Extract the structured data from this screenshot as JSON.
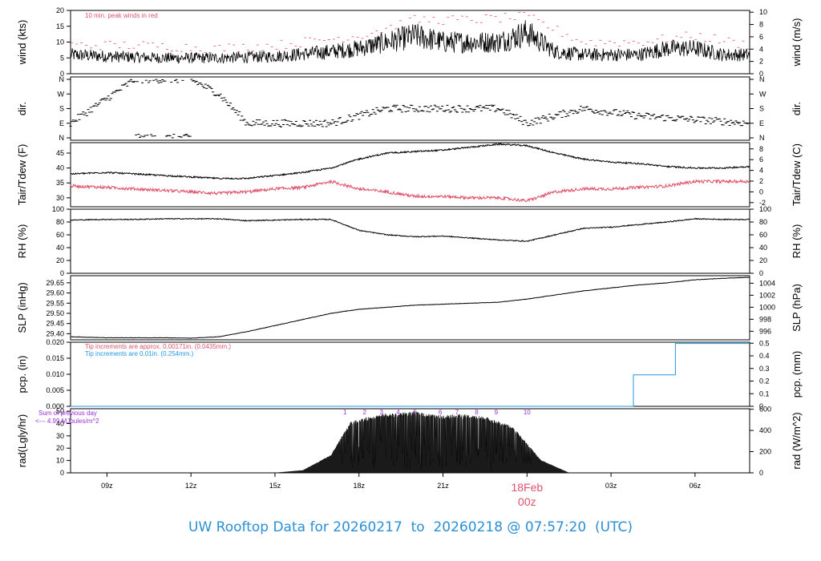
{
  "footer": {
    "prefix": "UW Rooftop Data for",
    "start": "20260217",
    "to": "to",
    "end": "20260218",
    "at": "@",
    "time": "07:57:20",
    "tz": "(UTC)"
  },
  "colors": {
    "black": "#000000",
    "red": "#df536b",
    "blue": "#2297e6",
    "purple": "#9b30d9",
    "footer": "#2b8fd6"
  },
  "time_axis": {
    "range_hours": [
      7.7,
      31.95
    ],
    "ticks": [
      {
        "h": 9,
        "label": "09z"
      },
      {
        "h": 12,
        "label": "12z"
      },
      {
        "h": 15,
        "label": "15z"
      },
      {
        "h": 18,
        "label": "18z"
      },
      {
        "h": 21,
        "label": "21z"
      },
      {
        "h": 24,
        "label": "18Feb"
      },
      {
        "h": 27,
        "label": "03z"
      },
      {
        "h": 30,
        "label": "06z"
      }
    ],
    "day_marker": {
      "date": "18Feb",
      "hour": "00z"
    }
  },
  "panels": {
    "wind": {
      "ylabel_left": "wind (kts)",
      "ylabel_right": "wind (m/s)",
      "left_ticks": [
        0,
        5,
        10,
        15,
        20
      ],
      "right_ticks": [
        0,
        2,
        4,
        6,
        8,
        10
      ],
      "ylim": [
        0,
        20
      ],
      "note": "10 min. peak winds in red"
    },
    "dir": {
      "ylabel_left": "dir.",
      "ylabel_right": "dir.",
      "ticks": [
        "N",
        "E",
        "S",
        "W",
        "N"
      ]
    },
    "temp": {
      "ylabel_left": "Tair/Tdew (F)",
      "ylabel_right": "Tair/Tdew (C)",
      "left_ticks": [
        30,
        35,
        40,
        45
      ],
      "right_ticks": [
        -2,
        0,
        2,
        4,
        6,
        8
      ],
      "ylim": [
        27,
        48.5
      ]
    },
    "rh": {
      "ylabel_left": "RH (%)",
      "ylabel_right": "RH (%)",
      "ticks": [
        0,
        20,
        40,
        60,
        80,
        100
      ],
      "ylim": [
        0,
        100
      ]
    },
    "slp": {
      "ylabel_left": "SLP (inHg)",
      "ylabel_right": "SLP (hPa)",
      "left_ticks": [
        "29.40",
        "29.45",
        "29.50",
        "29.55",
        "29.60",
        "29.65"
      ],
      "right_ticks": [
        996,
        998,
        1000,
        1002,
        1004
      ],
      "ylim": [
        29.37,
        29.685
      ]
    },
    "pcp": {
      "ylabel_left": "pcp. (in)",
      "ylabel_right": "pcp. (mm)",
      "left_ticks": [
        "0.000",
        "0.005",
        "0.010",
        "0.015",
        "0.020"
      ],
      "right_ticks": [
        0,
        0.1,
        0.2,
        0.3,
        0.4,
        0.5
      ],
      "ylim": [
        0,
        0.02
      ],
      "note_red": "Tip increments are approx. 0.00171in. (0.0435mm.)",
      "note_blue": "Tip increments are 0.01in. (0.254mm.)"
    },
    "rad": {
      "ylabel_left": "rad(Lgly/hr)",
      "ylabel_right": "rad (W/m^2)",
      "left_ticks": [
        0,
        10,
        20,
        30,
        40,
        50
      ],
      "right_ticks": [
        0,
        200,
        400,
        600
      ],
      "ylim": [
        0,
        52
      ],
      "note_line1": "Sum of previous day",
      "note_line2": "<--- 4.99 MJoules/m^2",
      "hour_marks": [
        "1",
        "2",
        "3",
        "4",
        "5",
        "6",
        "7",
        "8",
        "9",
        "10"
      ]
    }
  },
  "chart_data": {
    "type": "line",
    "title": "UW Rooftop Data for 20260217 to 20260218 @ 07:57:20 (UTC)",
    "x_unit": "hour (UTC) starting 2026-02-17 00z",
    "wind_kts": {
      "x": [
        7.7,
        9,
        11,
        13,
        15,
        17,
        18,
        19,
        20,
        21,
        22,
        23,
        24,
        25,
        26,
        27,
        28,
        29,
        30,
        31,
        31.95
      ],
      "y": [
        6,
        5.5,
        5,
        5,
        5.5,
        7,
        8,
        10,
        12,
        10,
        10,
        10,
        13,
        7,
        6,
        6,
        6,
        8,
        8,
        6,
        6
      ]
    },
    "peak_wind_kts": {
      "x": [
        7.7,
        10,
        13,
        15,
        18,
        20,
        22,
        24,
        26,
        28,
        30,
        31.95
      ],
      "y": [
        9,
        9,
        8,
        9,
        12,
        17,
        17,
        18,
        10,
        10,
        12,
        9
      ]
    },
    "direction": {
      "points": [
        [
          7.7,
          "E"
        ],
        [
          10,
          "N"
        ],
        [
          12,
          "N"
        ],
        [
          13,
          "W"
        ],
        [
          14,
          "E"
        ],
        [
          17,
          "E"
        ],
        [
          19,
          "S"
        ],
        [
          21,
          "S"
        ],
        [
          23,
          "S"
        ],
        [
          24,
          "E"
        ],
        [
          26,
          "S"
        ],
        [
          28,
          "SE"
        ],
        [
          31.95,
          "E"
        ]
      ]
    },
    "air_temp_f": {
      "x": [
        7.7,
        9,
        10,
        11,
        12,
        13,
        14,
        15,
        16,
        17,
        18,
        19,
        20,
        21,
        22,
        23,
        24,
        25,
        26,
        27,
        28,
        29,
        30,
        31,
        31.95
      ],
      "y": [
        38,
        38.5,
        38,
        37.5,
        37,
        36.5,
        36.5,
        37.5,
        38.5,
        40,
        43,
        45,
        45.5,
        46,
        47,
        48,
        47.5,
        45,
        43,
        42,
        41.5,
        40.5,
        40,
        40,
        40.5
      ]
    },
    "dewpoint_f": {
      "x": [
        7.7,
        9,
        10,
        11,
        12,
        13,
        14,
        15,
        16,
        17,
        18,
        19,
        20,
        21,
        22,
        23,
        24,
        25,
        26,
        27,
        28,
        29,
        30,
        31,
        31.95
      ],
      "y": [
        34,
        33.5,
        33,
        32.5,
        32,
        31.5,
        32,
        33,
        33.5,
        35.5,
        33,
        32,
        30.5,
        30.5,
        30,
        30,
        29,
        32,
        33,
        33,
        33.5,
        34,
        35.5,
        35.5,
        35.5
      ]
    },
    "rh_pct": {
      "x": [
        7.7,
        9,
        10,
        11,
        12,
        13,
        14,
        15,
        16,
        17,
        18,
        19,
        20,
        21,
        22,
        23,
        24,
        25,
        26,
        27,
        28,
        29,
        30,
        31,
        31.95
      ],
      "y": [
        83,
        84,
        84,
        85,
        85,
        85,
        82,
        83,
        84,
        84,
        67,
        60,
        57,
        58,
        55,
        52,
        50,
        60,
        70,
        72,
        76,
        80,
        85,
        84,
        84
      ]
    },
    "slp_inhg": {
      "x": [
        7.7,
        9,
        10,
        11,
        12,
        13,
        14,
        15,
        16,
        17,
        18,
        19,
        20,
        21,
        22,
        23,
        24,
        25,
        26,
        27,
        28,
        29,
        30,
        31,
        31.95
      ],
      "y": [
        29.385,
        29.38,
        29.38,
        29.38,
        29.378,
        29.385,
        29.41,
        29.44,
        29.47,
        29.5,
        29.52,
        29.53,
        29.54,
        29.545,
        29.55,
        29.555,
        29.57,
        29.59,
        29.61,
        29.625,
        29.64,
        29.65,
        29.665,
        29.672,
        29.677
      ]
    },
    "precip_in": {
      "x": [
        7.7,
        27.8,
        27.8,
        29.3,
        29.3,
        31.95
      ],
      "y": [
        0,
        0,
        0.0098,
        0.0098,
        0.0196,
        0.0196
      ]
    },
    "radiation_lgly_hr": {
      "x": [
        7.7,
        15,
        16,
        17,
        17.7,
        18.2,
        18.8,
        19.5,
        20,
        20.8,
        21.5,
        22.5,
        23.5,
        24.5,
        25.5,
        31.95
      ],
      "y": [
        0,
        0,
        2,
        14,
        40,
        43,
        46,
        47,
        48,
        45,
        46,
        44,
        36,
        10,
        0,
        0
      ]
    }
  }
}
